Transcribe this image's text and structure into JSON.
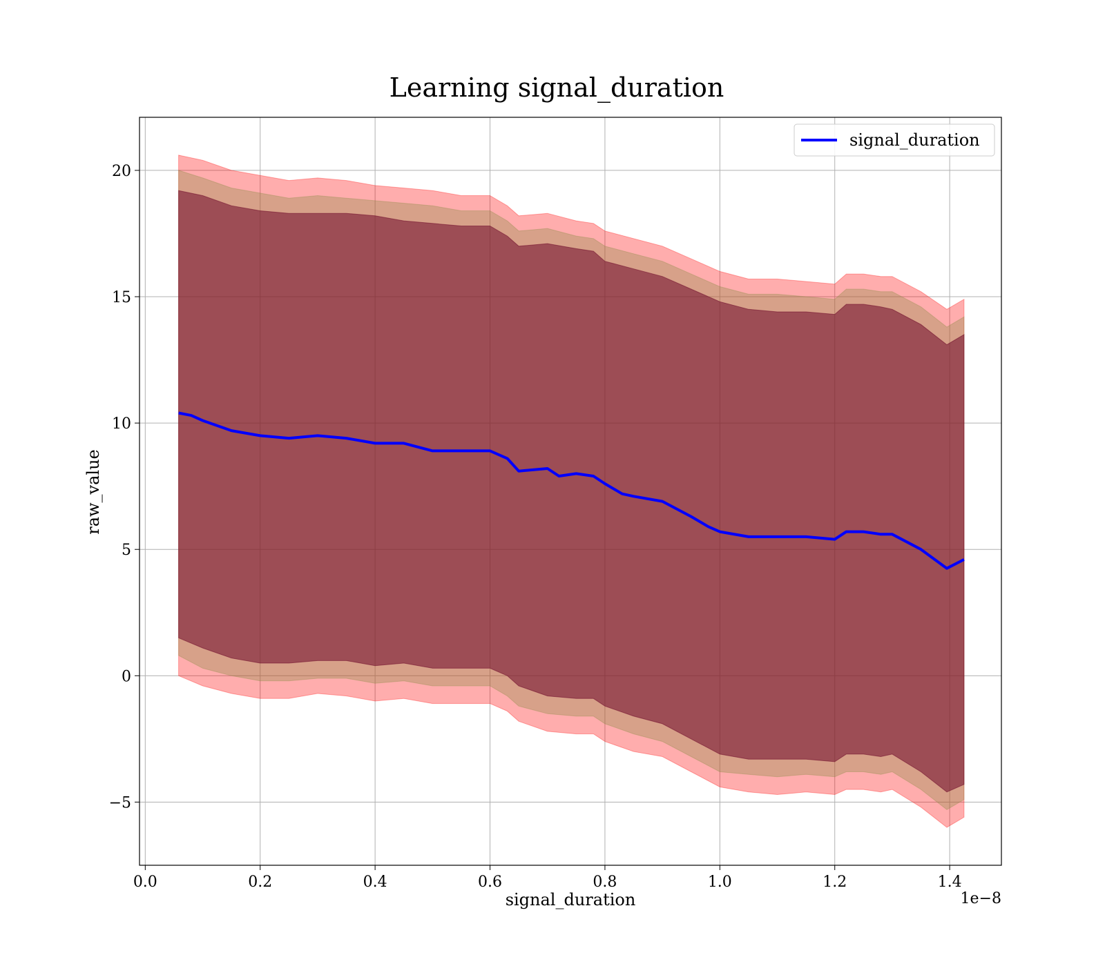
{
  "chart_data": {
    "type": "line",
    "title": "Learning signal_duration",
    "xlabel": "signal_duration",
    "ylabel": "raw_value",
    "x_offset_label": "1e−8",
    "xlim": [
      -0.01,
      1.49
    ],
    "ylim": [
      -7.5,
      22.1
    ],
    "xticks": [
      0.0,
      0.2,
      0.4,
      0.6,
      0.8,
      1.0,
      1.2,
      1.4
    ],
    "xtick_labels": [
      "0.0",
      "0.2",
      "0.4",
      "0.6",
      "0.8",
      "1.0",
      "1.2",
      "1.4"
    ],
    "yticks": [
      -5,
      0,
      5,
      10,
      15,
      20
    ],
    "ytick_labels": [
      "−5",
      "0",
      "5",
      "10",
      "15",
      "20"
    ],
    "grid": true,
    "legend_position": "top-right",
    "series": [
      {
        "name": "signal_duration",
        "color": "#0000ff",
        "x": [
          0.058,
          0.08,
          0.1,
          0.15,
          0.2,
          0.25,
          0.3,
          0.35,
          0.4,
          0.45,
          0.5,
          0.55,
          0.6,
          0.63,
          0.65,
          0.7,
          0.72,
          0.75,
          0.78,
          0.8,
          0.83,
          0.85,
          0.9,
          0.95,
          0.98,
          1.0,
          1.05,
          1.1,
          1.15,
          1.2,
          1.22,
          1.25,
          1.28,
          1.3,
          1.35,
          1.395,
          1.425
        ],
        "y": [
          10.4,
          10.3,
          10.1,
          9.7,
          9.5,
          9.4,
          9.5,
          9.4,
          9.2,
          9.2,
          8.9,
          8.9,
          8.9,
          8.6,
          8.1,
          8.2,
          7.9,
          8.0,
          7.9,
          7.6,
          7.2,
          7.1,
          6.9,
          6.3,
          5.9,
          5.7,
          5.5,
          5.5,
          5.5,
          5.4,
          5.7,
          5.7,
          5.6,
          5.6,
          5.0,
          4.25,
          4.6
        ]
      }
    ],
    "bands": [
      {
        "color": "#ff0000",
        "opacity": 0.32,
        "x": [
          0.058,
          0.1,
          0.15,
          0.2,
          0.25,
          0.3,
          0.35,
          0.4,
          0.45,
          0.5,
          0.55,
          0.6,
          0.63,
          0.65,
          0.7,
          0.75,
          0.78,
          0.8,
          0.85,
          0.9,
          0.95,
          1.0,
          1.05,
          1.1,
          1.15,
          1.2,
          1.22,
          1.25,
          1.28,
          1.3,
          1.35,
          1.395,
          1.425
        ],
        "upper": [
          20.6,
          20.4,
          20.0,
          19.8,
          19.6,
          19.7,
          19.6,
          19.4,
          19.3,
          19.2,
          19.0,
          19.0,
          18.6,
          18.2,
          18.3,
          18.0,
          17.9,
          17.6,
          17.3,
          17.0,
          16.5,
          16.0,
          15.7,
          15.7,
          15.6,
          15.5,
          15.9,
          15.9,
          15.8,
          15.8,
          15.2,
          14.5,
          14.9
        ],
        "lower": [
          0.0,
          -0.4,
          -0.7,
          -0.9,
          -0.9,
          -0.7,
          -0.8,
          -1.0,
          -0.9,
          -1.1,
          -1.1,
          -1.1,
          -1.4,
          -1.8,
          -2.2,
          -2.3,
          -2.3,
          -2.6,
          -3.0,
          -3.2,
          -3.8,
          -4.4,
          -4.6,
          -4.7,
          -4.6,
          -4.7,
          -4.5,
          -4.5,
          -4.6,
          -4.5,
          -5.2,
          -6.0,
          -5.6
        ]
      },
      {
        "color": "#8b8c48",
        "opacity": 0.35,
        "x": [
          0.058,
          0.1,
          0.15,
          0.2,
          0.25,
          0.3,
          0.35,
          0.4,
          0.45,
          0.5,
          0.55,
          0.6,
          0.63,
          0.65,
          0.7,
          0.75,
          0.78,
          0.8,
          0.85,
          0.9,
          0.95,
          1.0,
          1.05,
          1.1,
          1.15,
          1.2,
          1.22,
          1.25,
          1.28,
          1.3,
          1.35,
          1.395,
          1.425
        ],
        "upper": [
          20.0,
          19.7,
          19.3,
          19.1,
          18.9,
          19.0,
          18.9,
          18.8,
          18.7,
          18.6,
          18.4,
          18.4,
          18.0,
          17.6,
          17.7,
          17.4,
          17.3,
          17.0,
          16.7,
          16.4,
          15.9,
          15.4,
          15.1,
          15.1,
          15.0,
          14.9,
          15.3,
          15.3,
          15.2,
          15.2,
          14.6,
          13.8,
          14.2
        ],
        "lower": [
          0.8,
          0.3,
          0.0,
          -0.2,
          -0.2,
          -0.1,
          -0.1,
          -0.3,
          -0.2,
          -0.4,
          -0.4,
          -0.4,
          -0.8,
          -1.2,
          -1.5,
          -1.6,
          -1.6,
          -1.9,
          -2.3,
          -2.6,
          -3.2,
          -3.8,
          -3.9,
          -4.0,
          -3.9,
          -4.0,
          -3.8,
          -3.8,
          -3.9,
          -3.8,
          -4.5,
          -5.3,
          -4.9
        ]
      },
      {
        "color": "#6d0a2a",
        "opacity": 0.55,
        "x": [
          0.058,
          0.1,
          0.15,
          0.2,
          0.25,
          0.3,
          0.35,
          0.4,
          0.45,
          0.5,
          0.55,
          0.6,
          0.63,
          0.65,
          0.7,
          0.75,
          0.78,
          0.8,
          0.85,
          0.9,
          0.95,
          1.0,
          1.05,
          1.1,
          1.15,
          1.2,
          1.22,
          1.25,
          1.28,
          1.3,
          1.35,
          1.395,
          1.425
        ],
        "upper": [
          19.2,
          19.0,
          18.6,
          18.4,
          18.3,
          18.3,
          18.3,
          18.2,
          18.0,
          17.9,
          17.8,
          17.8,
          17.4,
          17.0,
          17.1,
          16.9,
          16.8,
          16.4,
          16.1,
          15.8,
          15.3,
          14.8,
          14.5,
          14.4,
          14.4,
          14.3,
          14.7,
          14.7,
          14.6,
          14.5,
          13.9,
          13.1,
          13.5
        ],
        "lower": [
          1.5,
          1.1,
          0.7,
          0.5,
          0.5,
          0.6,
          0.6,
          0.4,
          0.5,
          0.3,
          0.3,
          0.3,
          0.0,
          -0.4,
          -0.8,
          -0.9,
          -0.9,
          -1.2,
          -1.6,
          -1.9,
          -2.5,
          -3.1,
          -3.3,
          -3.3,
          -3.3,
          -3.4,
          -3.1,
          -3.1,
          -3.2,
          -3.1,
          -3.8,
          -4.6,
          -4.3
        ]
      }
    ]
  }
}
